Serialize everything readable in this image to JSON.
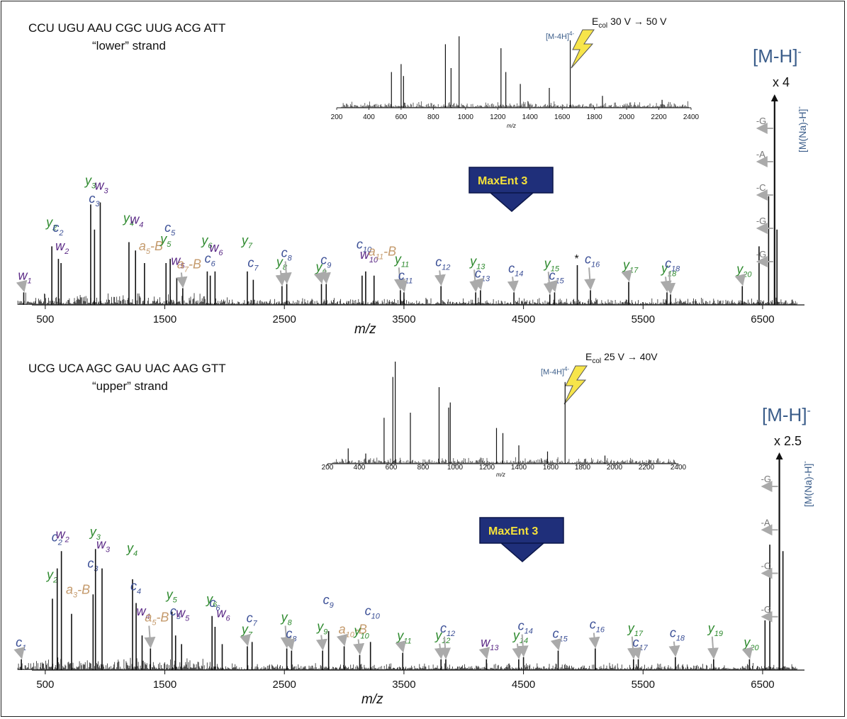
{
  "colors": {
    "c_ion": "#3b4f96",
    "w_ion": "#5b2a86",
    "y_ion": "#2e8a2e",
    "a_ion": "#c49a6c",
    "arrow": "#aaaaaa",
    "mh": "#3b5d8a",
    "maxent_bg": "#1f2f7a",
    "maxent_text": "#f5e23b"
  },
  "maxent_label": "MaxEnt 3",
  "chart_data": [
    {
      "type": "bar",
      "sequence": "CCU UGU AAU CGC UUG ACG ATT",
      "strand": "“lower” strand",
      "xlabel": "m/z",
      "xlim": [
        240,
        6850
      ],
      "xticks": [
        500,
        1500,
        2500,
        3500,
        4500,
        5500,
        6500
      ],
      "precursor": "[M-H]",
      "precursor_charge": "-",
      "multiplier": "x 4",
      "adduct": "[M(Na)-H]",
      "adduct_charge": "-",
      "neutral_loss_labels": [
        "-G",
        "-A",
        "-C",
        "-G",
        "-G"
      ],
      "peaks": [
        {
          "mz": 320,
          "h": 0.06,
          "ion": "w",
          "n": "1"
        },
        {
          "mz": 555,
          "h": 0.28,
          "ion": "y",
          "n": "2"
        },
        {
          "mz": 610,
          "h": 0.22,
          "ion": "c",
          "n": "2"
        },
        {
          "mz": 632,
          "h": 0.2,
          "ion": "w",
          "n": "2"
        },
        {
          "mz": 880,
          "h": 0.48,
          "ion": "y",
          "n": "3"
        },
        {
          "mz": 912,
          "h": 0.36,
          "ion": "c",
          "n": "3"
        },
        {
          "mz": 960,
          "h": 0.49,
          "ion": "w",
          "n": "3"
        },
        {
          "mz": 1200,
          "h": 0.3,
          "ion": "y",
          "n": "4"
        },
        {
          "mz": 1255,
          "h": 0.26,
          "ion": "w",
          "n": "4"
        },
        {
          "mz": 1330,
          "h": 0.2,
          "ion": "a",
          "n": "5",
          "suffix": "-B"
        },
        {
          "mz": 1510,
          "h": 0.2,
          "ion": "y",
          "n": "5"
        },
        {
          "mz": 1545,
          "h": 0.22,
          "ion": "c",
          "n": "5"
        },
        {
          "mz": 1600,
          "h": 0.13,
          "ion": "w",
          "n": "5"
        },
        {
          "mz": 1650,
          "h": 0.08,
          "ion": "a",
          "n": "7",
          "suffix": "-B"
        },
        {
          "mz": 1855,
          "h": 0.16,
          "ion": "y",
          "n": "6"
        },
        {
          "mz": 1880,
          "h": 0.14,
          "ion": "c",
          "n": "6"
        },
        {
          "mz": 1920,
          "h": 0.16,
          "ion": "w",
          "n": "6"
        },
        {
          "mz": 2190,
          "h": 0.16,
          "ion": "y",
          "n": "7"
        },
        {
          "mz": 2240,
          "h": 0.12,
          "ion": "c",
          "n": "7"
        },
        {
          "mz": 2480,
          "h": 0.09,
          "ion": "y",
          "n": "8"
        },
        {
          "mz": 2520,
          "h": 0.1,
          "ion": "c",
          "n": "8"
        },
        {
          "mz": 2810,
          "h": 0.1,
          "ion": "y",
          "n": "9"
        },
        {
          "mz": 2850,
          "h": 0.1,
          "ion": "c",
          "n": "9"
        },
        {
          "mz": 3150,
          "h": 0.14,
          "ion": "c",
          "n": "10"
        },
        {
          "mz": 3180,
          "h": 0.16,
          "ion": "w",
          "n": "10"
        },
        {
          "mz": 3250,
          "h": 0.14,
          "ion": "a",
          "n": "11",
          "suffix": "-B"
        },
        {
          "mz": 3470,
          "h": 0.07,
          "ion": "y",
          "n": "11"
        },
        {
          "mz": 3500,
          "h": 0.06,
          "ion": "c",
          "n": "11"
        },
        {
          "mz": 3810,
          "h": 0.09,
          "ion": "c",
          "n": "12"
        },
        {
          "mz": 4100,
          "h": 0.06,
          "ion": "y",
          "n": "13"
        },
        {
          "mz": 4140,
          "h": 0.07,
          "ion": "c",
          "n": "13"
        },
        {
          "mz": 4420,
          "h": 0.06,
          "ion": "c",
          "n": "14"
        },
        {
          "mz": 4720,
          "h": 0.05,
          "ion": "y",
          "n": "15"
        },
        {
          "mz": 4760,
          "h": 0.06,
          "ion": "c",
          "n": "15"
        },
        {
          "mz": 4950,
          "h": 0.19,
          "ion": "star"
        },
        {
          "mz": 5060,
          "h": 0.07,
          "ion": "c",
          "n": "16"
        },
        {
          "mz": 5380,
          "h": 0.11,
          "ion": "y",
          "n": "17"
        },
        {
          "mz": 5700,
          "h": 0.06,
          "ion": "y",
          "n": "18"
        },
        {
          "mz": 5730,
          "h": 0.05,
          "ion": "c",
          "n": "18"
        },
        {
          "mz": 6330,
          "h": 0.09,
          "ion": "y",
          "n": "20"
        },
        {
          "mz": 6470,
          "h": 0.28,
          "ion": "minus"
        },
        {
          "mz": 6550,
          "h": 0.52,
          "ion": "minus"
        },
        {
          "mz": 6600,
          "h": 1.0,
          "ion": "precursor"
        },
        {
          "mz": 6620,
          "h": 0.36,
          "ion": "adduct"
        }
      ],
      "inset": {
        "xticks": [
          200,
          400,
          600,
          800,
          1000,
          1200,
          1400,
          1600,
          1800,
          2000,
          2200,
          2400
        ],
        "xlabel": "m/z",
        "ecol_label": "E",
        "ecol_sub": "col",
        "ecol_range": "30 V → 50 V",
        "precursor_label": "[M-4H]",
        "precursor_charge": "4-"
      }
    },
    {
      "type": "bar",
      "sequence": "UCG UCA AGC GAU UAC AAG GTT",
      "strand": "“upper” strand",
      "xlabel": "m/z",
      "xlim": [
        240,
        6850
      ],
      "xticks": [
        500,
        1500,
        2500,
        3500,
        4500,
        5500,
        6500
      ],
      "precursor": "[M-H]",
      "precursor_charge": "-",
      "multiplier": "x 2.5",
      "adduct": "[M(Na)-H]",
      "adduct_charge": "-",
      "neutral_loss_labels": [
        "-G",
        "-A",
        "-C",
        "-G"
      ],
      "peaks": [
        {
          "mz": 300,
          "h": 0.05,
          "ion": "c",
          "n": "1"
        },
        {
          "mz": 560,
          "h": 0.33,
          "ion": "y",
          "n": "2"
        },
        {
          "mz": 600,
          "h": 0.47,
          "ion": "c",
          "n": "2"
        },
        {
          "mz": 635,
          "h": 0.55,
          "ion": "w",
          "n": "2"
        },
        {
          "mz": 720,
          "h": 0.26,
          "ion": "a",
          "n": "3",
          "suffix": "-B"
        },
        {
          "mz": 900,
          "h": 0.35,
          "ion": "c",
          "n": "3"
        },
        {
          "mz": 920,
          "h": 0.56,
          "ion": "y",
          "n": "3"
        },
        {
          "mz": 975,
          "h": 0.47,
          "ion": "w",
          "n": "3"
        },
        {
          "mz": 1230,
          "h": 0.42,
          "ion": "y",
          "n": "4"
        },
        {
          "mz": 1260,
          "h": 0.31,
          "ion": "c",
          "n": "4"
        },
        {
          "mz": 1310,
          "h": 0.16,
          "ion": "w",
          "n": "4"
        },
        {
          "mz": 1380,
          "h": 0.1,
          "ion": "a",
          "n": "5",
          "suffix": "-B"
        },
        {
          "mz": 1560,
          "h": 0.27,
          "ion": "y",
          "n": "5"
        },
        {
          "mz": 1590,
          "h": 0.16,
          "ion": "c",
          "n": "5"
        },
        {
          "mz": 1640,
          "h": 0.12,
          "ion": "w",
          "n": "5"
        },
        {
          "mz": 1895,
          "h": 0.25,
          "ion": "y",
          "n": "6"
        },
        {
          "mz": 1920,
          "h": 0.2,
          "ion": "c",
          "n": "6"
        },
        {
          "mz": 1980,
          "h": 0.12,
          "ion": "w",
          "n": "6"
        },
        {
          "mz": 2190,
          "h": 0.11,
          "ion": "y",
          "n": "7"
        },
        {
          "mz": 2230,
          "h": 0.13,
          "ion": "c",
          "n": "7"
        },
        {
          "mz": 2520,
          "h": 0.1,
          "ion": "y",
          "n": "8"
        },
        {
          "mz": 2560,
          "h": 0.09,
          "ion": "c",
          "n": "8"
        },
        {
          "mz": 2820,
          "h": 0.09,
          "ion": "y",
          "n": "9"
        },
        {
          "mz": 2870,
          "h": 0.18,
          "ion": "c",
          "n": "9"
        },
        {
          "mz": 3000,
          "h": 0.11,
          "ion": "a",
          "n": "10",
          "suffix": "-B"
        },
        {
          "mz": 3130,
          "h": 0.07,
          "ion": "y",
          "n": "10"
        },
        {
          "mz": 3220,
          "h": 0.13,
          "ion": "c",
          "n": "10"
        },
        {
          "mz": 3490,
          "h": 0.08,
          "ion": "y",
          "n": "11"
        },
        {
          "mz": 3810,
          "h": 0.05,
          "ion": "y",
          "n": "12"
        },
        {
          "mz": 3850,
          "h": 0.05,
          "ion": "c",
          "n": "12"
        },
        {
          "mz": 4190,
          "h": 0.05,
          "ion": "w",
          "n": "13"
        },
        {
          "mz": 4460,
          "h": 0.05,
          "ion": "y",
          "n": "14"
        },
        {
          "mz": 4500,
          "h": 0.06,
          "ion": "c",
          "n": "14"
        },
        {
          "mz": 4790,
          "h": 0.09,
          "ion": "c",
          "n": "15"
        },
        {
          "mz": 5100,
          "h": 0.1,
          "ion": "c",
          "n": "16"
        },
        {
          "mz": 5420,
          "h": 0.05,
          "ion": "y",
          "n": "17"
        },
        {
          "mz": 5460,
          "h": 0.05,
          "ion": "c",
          "n": "17"
        },
        {
          "mz": 5770,
          "h": 0.06,
          "ion": "c",
          "n": "18"
        },
        {
          "mz": 6090,
          "h": 0.05,
          "ion": "y",
          "n": "19"
        },
        {
          "mz": 6390,
          "h": 0.05,
          "ion": "y",
          "n": "20"
        },
        {
          "mz": 6520,
          "h": 0.23,
          "ion": "minus"
        },
        {
          "mz": 6560,
          "h": 0.58,
          "ion": "minus"
        },
        {
          "mz": 6640,
          "h": 1.0,
          "ion": "precursor"
        },
        {
          "mz": 6670,
          "h": 0.55,
          "ion": "adduct"
        }
      ],
      "inset": {
        "xticks": [
          200,
          400,
          600,
          800,
          1000,
          1200,
          1400,
          1600,
          1800,
          2000,
          2200,
          2400
        ],
        "xlabel": "m/z",
        "ecol_label": "E",
        "ecol_sub": "col",
        "ecol_range": "25 V → 40V",
        "precursor_label": "[M-4H]",
        "precursor_charge": "4-"
      }
    }
  ]
}
